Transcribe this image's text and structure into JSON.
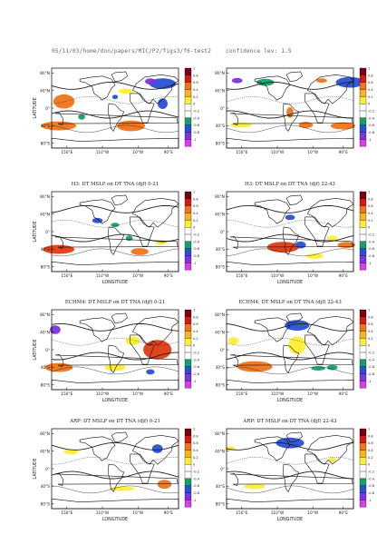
{
  "header": {
    "path": "05/11/03/home/don/papers/MIC/P2/figs3/f6-test2",
    "confidence": "confidence lev: 1.5"
  },
  "colorbar": {
    "ticks": [
      "1",
      "0.8",
      "0.6",
      "0.4",
      "0.2",
      "0",
      "-0.2",
      "-0.4",
      "-0.6",
      "-0.8",
      "-1"
    ],
    "colors": [
      "#7a0010",
      "#d21a12",
      "#f07418",
      "#f6b41e",
      "#ffee33",
      "#ffffff",
      "#ffffff",
      "#14a06a",
      "#2a4fd6",
      "#7a34e0",
      "#d63ee8"
    ]
  },
  "palette": {
    "land": "#111111",
    "pos_weak": "#ffee33",
    "pos_mid": "#f6b41e",
    "pos_strong": "#f07418",
    "pos_max": "#e03a12",
    "neg_weak": "#14a06a",
    "neg_mid": "#2a4fd6",
    "neg_strong": "#7a34e0"
  },
  "chart_data": [
    {
      "type": "heatmap",
      "title": "",
      "ylabel": "LATITUDE",
      "xlabel": "",
      "ytick_labels": [
        "80°N",
        "40°N",
        "0°",
        "40°S",
        "80°S"
      ],
      "xtick_labels": [
        "150°E",
        "110°W",
        "10°W",
        "90°E"
      ],
      "caption": "",
      "patches": [
        {
          "lon": 75,
          "lat": 55,
          "sign": -2,
          "rx": 38,
          "ry": 12
        },
        {
          "lon": 40,
          "lat": 60,
          "sign": -3,
          "rx": 15,
          "ry": 7
        },
        {
          "lon": 75,
          "lat": 10,
          "sign": -2,
          "rx": 14,
          "ry": 12
        },
        {
          "lon": 300,
          "lat": 25,
          "sign": -2,
          "rx": 8,
          "ry": 5
        },
        {
          "lon": 155,
          "lat": 15,
          "sign": 2,
          "rx": 30,
          "ry": 16
        },
        {
          "lon": 140,
          "lat": -40,
          "sign": 2,
          "rx": 50,
          "ry": 10
        },
        {
          "lon": 345,
          "lat": -40,
          "sign": 2,
          "rx": 40,
          "ry": 12
        },
        {
          "lon": 330,
          "lat": 38,
          "sign": 1,
          "rx": 20,
          "ry": 6
        },
        {
          "lon": 205,
          "lat": -20,
          "sign": -1,
          "rx": 10,
          "ry": 6
        }
      ]
    },
    {
      "type": "heatmap",
      "title": "",
      "ylabel": "",
      "xlabel": "",
      "ytick_labels": [
        "80°N",
        "40°N",
        "0°",
        "40°S",
        "80°S"
      ],
      "xtick_labels": [
        "150°E",
        "110°W",
        "10°W",
        "90°E"
      ],
      "caption": "",
      "patches": [
        {
          "lon": 110,
          "lat": 58,
          "sign": -2,
          "rx": 40,
          "ry": 12
        },
        {
          "lon": 150,
          "lat": 62,
          "sign": -3,
          "rx": 15,
          "ry": 6
        },
        {
          "lon": 230,
          "lat": 58,
          "sign": -1,
          "rx": 25,
          "ry": 8
        },
        {
          "lon": 30,
          "lat": 62,
          "sign": 2,
          "rx": 15,
          "ry": 5
        },
        {
          "lon": 345,
          "lat": -38,
          "sign": 2,
          "rx": 20,
          "ry": 7
        },
        {
          "lon": 90,
          "lat": -40,
          "sign": 2,
          "rx": 35,
          "ry": 8
        },
        {
          "lon": 160,
          "lat": -38,
          "sign": 1,
          "rx": 30,
          "ry": 6
        },
        {
          "lon": 300,
          "lat": -10,
          "sign": 2,
          "rx": 10,
          "ry": 12
        }
      ]
    },
    {
      "type": "heatmap",
      "title": "",
      "ylabel": "LATITUDE",
      "xlabel": "LONGITUDE",
      "ytick_labels": [
        "80°N",
        "40°N",
        "0°",
        "40°S",
        "80°S"
      ],
      "xtick_labels": [
        "150°E",
        "110°W",
        "10°W",
        "90°E"
      ],
      "caption": "H3: DT MSLP on DT TNA (djf) 0-21",
      "patches": [
        {
          "lon": 140,
          "lat": -40,
          "sign": 3,
          "rx": 45,
          "ry": 10
        },
        {
          "lon": 10,
          "lat": -45,
          "sign": 2,
          "rx": 25,
          "ry": 8
        },
        {
          "lon": 250,
          "lat": 25,
          "sign": -2,
          "rx": 15,
          "ry": 6
        },
        {
          "lon": 300,
          "lat": 15,
          "sign": -1,
          "rx": 12,
          "ry": 5
        },
        {
          "lon": 70,
          "lat": -25,
          "sign": 1,
          "rx": 15,
          "ry": 5
        },
        {
          "lon": 340,
          "lat": -15,
          "sign": -1,
          "rx": 10,
          "ry": 6
        }
      ]
    },
    {
      "type": "heatmap",
      "title": "",
      "ylabel": "",
      "xlabel": "LONGITUDE",
      "ytick_labels": [
        "80°N",
        "40°N",
        "0°",
        "40°S",
        "80°S"
      ],
      "xtick_labels": [
        "150°E",
        "110°W",
        "10°W",
        "90°E"
      ],
      "caption": "H3: DT MSLP on DT TNA (djf) 22-43",
      "patches": [
        {
          "lon": 280,
          "lat": -35,
          "sign": 3,
          "rx": 45,
          "ry": 12
        },
        {
          "lon": 330,
          "lat": -30,
          "sign": -2,
          "rx": 15,
          "ry": 8
        },
        {
          "lon": 100,
          "lat": -30,
          "sign": 2,
          "rx": 25,
          "ry": 7
        },
        {
          "lon": 300,
          "lat": 32,
          "sign": -2,
          "rx": 14,
          "ry": 6
        },
        {
          "lon": 10,
          "lat": -55,
          "sign": 1,
          "rx": 25,
          "ry": 6
        },
        {
          "lon": 60,
          "lat": -15,
          "sign": 1,
          "rx": 15,
          "ry": 6
        }
      ]
    },
    {
      "type": "heatmap",
      "title": "",
      "ylabel": "LATITUDE",
      "xlabel": "LONGITUDE",
      "ytick_labels": [
        "80°N",
        "40°N",
        "0°",
        "40°S",
        "80°S"
      ],
      "xtick_labels": [
        "150°E",
        "110°W",
        "10°W",
        "90°E"
      ],
      "caption": "ECHM4: DT MSLP on DT TNA (djf) 0-21",
      "patches": [
        {
          "lon": 60,
          "lat": 0,
          "sign": 3,
          "rx": 40,
          "ry": 22
        },
        {
          "lon": 140,
          "lat": -40,
          "sign": 2,
          "rx": 40,
          "ry": 10
        },
        {
          "lon": 40,
          "lat": -50,
          "sign": -2,
          "rx": 12,
          "ry": 6
        },
        {
          "lon": 130,
          "lat": 45,
          "sign": -3,
          "rx": 15,
          "ry": 10
        },
        {
          "lon": 350,
          "lat": 20,
          "sign": 1,
          "rx": 20,
          "ry": 10
        },
        {
          "lon": 300,
          "lat": -40,
          "sign": 1,
          "rx": 30,
          "ry": 8
        }
      ]
    },
    {
      "type": "heatmap",
      "title": "",
      "ylabel": "",
      "xlabel": "LONGITUDE",
      "ytick_labels": [
        "80°N",
        "40°N",
        "0°",
        "40°S",
        "80°S"
      ],
      "xtick_labels": [
        "150°E",
        "110°W",
        "10°W",
        "90°E"
      ],
      "caption": "ECHM4: DT MSLP on DT TNA (djf) 22-43",
      "patches": [
        {
          "lon": 200,
          "lat": -38,
          "sign": 2,
          "rx": 50,
          "ry": 12
        },
        {
          "lon": 320,
          "lat": 10,
          "sign": 1,
          "rx": 25,
          "ry": 20
        },
        {
          "lon": 320,
          "lat": 55,
          "sign": -2,
          "rx": 35,
          "ry": 12
        },
        {
          "lon": 60,
          "lat": -40,
          "sign": -1,
          "rx": 15,
          "ry": 6
        },
        {
          "lon": 140,
          "lat": 20,
          "sign": 1,
          "rx": 15,
          "ry": 8
        },
        {
          "lon": 20,
          "lat": -42,
          "sign": -1,
          "rx": 20,
          "ry": 5
        }
      ]
    },
    {
      "type": "heatmap",
      "title": "",
      "ylabel": "LATITUDE",
      "xlabel": "LONGITUDE",
      "ytick_labels": [
        "80°N",
        "40°N",
        "0°",
        "40°S",
        "80°S"
      ],
      "xtick_labels": [
        "150°E",
        "110°W",
        "10°W",
        "90°E"
      ],
      "caption": "ARP: DT MSLP on DT TNA (djf) 0-21",
      "patches": [
        {
          "lon": 60,
          "lat": 45,
          "sign": -2,
          "rx": 15,
          "ry": 10
        },
        {
          "lon": 80,
          "lat": -35,
          "sign": 2,
          "rx": 20,
          "ry": 10
        },
        {
          "lon": 175,
          "lat": 38,
          "sign": 1,
          "rx": 20,
          "ry": 6
        },
        {
          "lon": 320,
          "lat": -45,
          "sign": 1,
          "rx": 35,
          "ry": 5
        }
      ]
    },
    {
      "type": "heatmap",
      "title": "",
      "ylabel": "",
      "xlabel": "LONGITUDE",
      "ytick_labels": [
        "80°N",
        "40°N",
        "0°",
        "40°S",
        "80°S"
      ],
      "xtick_labels": [
        "150°E",
        "110°W",
        "10°W",
        "90°E"
      ],
      "caption": "ARP: DT MSLP on DT TNA (djf) 22-43",
      "patches": [
        {
          "lon": 300,
          "lat": 58,
          "sign": -2,
          "rx": 40,
          "ry": 12
        },
        {
          "lon": 200,
          "lat": -40,
          "sign": 1,
          "rx": 30,
          "ry": 6
        },
        {
          "lon": 130,
          "lat": 45,
          "sign": 1,
          "rx": 15,
          "ry": 5
        },
        {
          "lon": 60,
          "lat": 20,
          "sign": 1,
          "rx": 10,
          "ry": 6
        }
      ]
    }
  ]
}
